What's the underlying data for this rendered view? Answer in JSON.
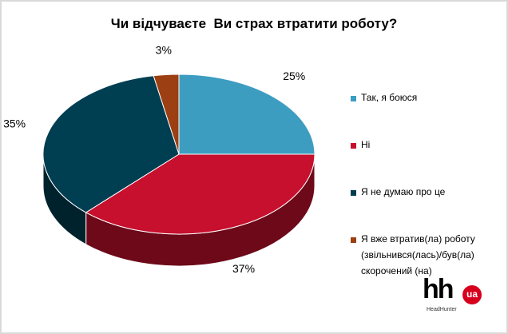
{
  "title": "Чи відчуваєте  Ви страх втратити роботу?",
  "chart_data": {
    "type": "pie",
    "title": "Чи відчуваєте  Ви страх втратити роботу?",
    "slices": [
      {
        "label": "Так, я боюся",
        "value": 25,
        "display": "25%",
        "color": "#3d9dc1"
      },
      {
        "label": "Ні",
        "value": 37,
        "display": "37%",
        "color": "#c6102e"
      },
      {
        "label": "Я не думаю про це",
        "value": 35,
        "display": "35%",
        "color": "#003e52"
      },
      {
        "label": "Я вже втратив(ла) роботу (звільнився(лась)/був(ла) скорочений (на)",
        "value": 3,
        "display": "3%",
        "color": "#9c3f12"
      }
    ],
    "legend_position": "right",
    "style": "3d"
  },
  "logo": {
    "mark": "hh",
    "badge": "ua",
    "caption": "HeadHunter"
  }
}
